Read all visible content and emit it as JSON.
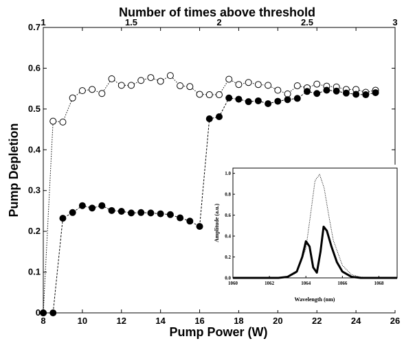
{
  "chart_data": [
    {
      "type": "scatter",
      "title": "",
      "xlabel": "Pump Power (W)",
      "ylabel": "Pump Depletion",
      "top_xlabel": "Number of times above threshold",
      "xlim": [
        8,
        26
      ],
      "ylim": [
        0,
        0.7
      ],
      "x_ticks": [
        "8",
        "10",
        "12",
        "14",
        "16",
        "18",
        "20",
        "22",
        "24",
        "26"
      ],
      "y_ticks": [
        "0",
        "0.1",
        "0.2",
        "0.3",
        "0.4",
        "0.5",
        "0.6",
        "0.7"
      ],
      "top_ticks": [
        "1",
        "1.5",
        "2",
        "2.5",
        "3"
      ],
      "top_axis": {
        "lim": [
          1,
          3
        ]
      },
      "grid": false,
      "series": [
        {
          "marker": "open-circle",
          "linestyle": "dotted",
          "color": "#000000",
          "x": [
            8.0,
            8.5,
            9.0,
            9.5,
            10.0,
            10.5,
            11.0,
            11.5,
            12.0,
            12.5,
            13.0,
            13.5,
            14.0,
            14.5,
            15.0,
            15.5,
            16.0,
            16.5,
            17.0,
            17.5,
            18.0,
            18.5,
            19.0,
            19.5,
            20.0,
            20.5,
            21.0,
            21.5,
            22.0,
            22.5,
            23.0,
            23.5,
            24.0,
            24.5,
            25.0
          ],
          "y": [
            0.0,
            0.47,
            0.468,
            0.527,
            0.545,
            0.548,
            0.538,
            0.574,
            0.558,
            0.558,
            0.57,
            0.577,
            0.568,
            0.582,
            0.557,
            0.555,
            0.536,
            0.535,
            0.535,
            0.573,
            0.56,
            0.565,
            0.56,
            0.558,
            0.546,
            0.537,
            0.557,
            0.552,
            0.561,
            0.556,
            0.554,
            0.548,
            0.548,
            0.541,
            0.546
          ]
        },
        {
          "marker": "filled-circle",
          "linestyle": "dashed",
          "color": "#000000",
          "x": [
            8.0,
            8.5,
            9.0,
            9.5,
            10.0,
            10.5,
            11.0,
            11.5,
            12.0,
            12.5,
            13.0,
            13.5,
            14.0,
            14.5,
            15.0,
            15.5,
            16.0,
            16.5,
            17.0,
            17.5,
            18.0,
            18.5,
            19.0,
            19.5,
            20.0,
            20.5,
            21.0,
            21.5,
            22.0,
            22.5,
            23.0,
            23.5,
            24.0,
            24.5,
            25.0
          ],
          "y": [
            0.0,
            0.0,
            0.232,
            0.246,
            0.263,
            0.257,
            0.263,
            0.251,
            0.249,
            0.245,
            0.246,
            0.245,
            0.243,
            0.241,
            0.233,
            0.225,
            0.212,
            0.476,
            0.481,
            0.527,
            0.524,
            0.518,
            0.52,
            0.513,
            0.519,
            0.523,
            0.526,
            0.543,
            0.538,
            0.546,
            0.544,
            0.539,
            0.536,
            0.535,
            0.54
          ]
        }
      ]
    },
    {
      "type": "line",
      "title": "",
      "xlabel": "Wavelength (nm)",
      "ylabel": "Amplitude (a.u.)",
      "xlim": [
        1060,
        1069
      ],
      "ylim": [
        0,
        1.05
      ],
      "x_ticks": [
        "1060",
        "1062",
        "1064",
        "1066",
        "1068"
      ],
      "y_ticks": [
        "0.0",
        "0.2",
        "0.4",
        "0.6",
        "0.8",
        "1.0"
      ],
      "grid": false,
      "series": [
        {
          "linestyle": "dotted",
          "color": "#000000",
          "x": [
            1060.0,
            1062.0,
            1063.0,
            1063.5,
            1064.0,
            1064.25,
            1064.5,
            1064.75,
            1065.0,
            1065.25,
            1065.5,
            1066.0,
            1066.5,
            1067.0,
            1068.0,
            1069.0
          ],
          "y": [
            0.0,
            0.0,
            0.005,
            0.05,
            0.28,
            0.6,
            0.93,
            0.99,
            0.86,
            0.6,
            0.36,
            0.12,
            0.03,
            0.008,
            0.0,
            0.0
          ]
        },
        {
          "linestyle": "solid",
          "color": "#000000",
          "x": [
            1060.0,
            1062.5,
            1063.0,
            1063.5,
            1063.8,
            1064.0,
            1064.2,
            1064.4,
            1064.6,
            1064.8,
            1064.97,
            1065.15,
            1065.4,
            1065.7,
            1066.0,
            1066.5,
            1067.0,
            1068.0,
            1069.0
          ],
          "y": [
            0.0,
            0.0,
            0.01,
            0.06,
            0.2,
            0.35,
            0.3,
            0.1,
            0.05,
            0.25,
            0.49,
            0.45,
            0.3,
            0.15,
            0.06,
            0.01,
            0.0,
            0.0,
            0.0
          ]
        }
      ]
    }
  ]
}
